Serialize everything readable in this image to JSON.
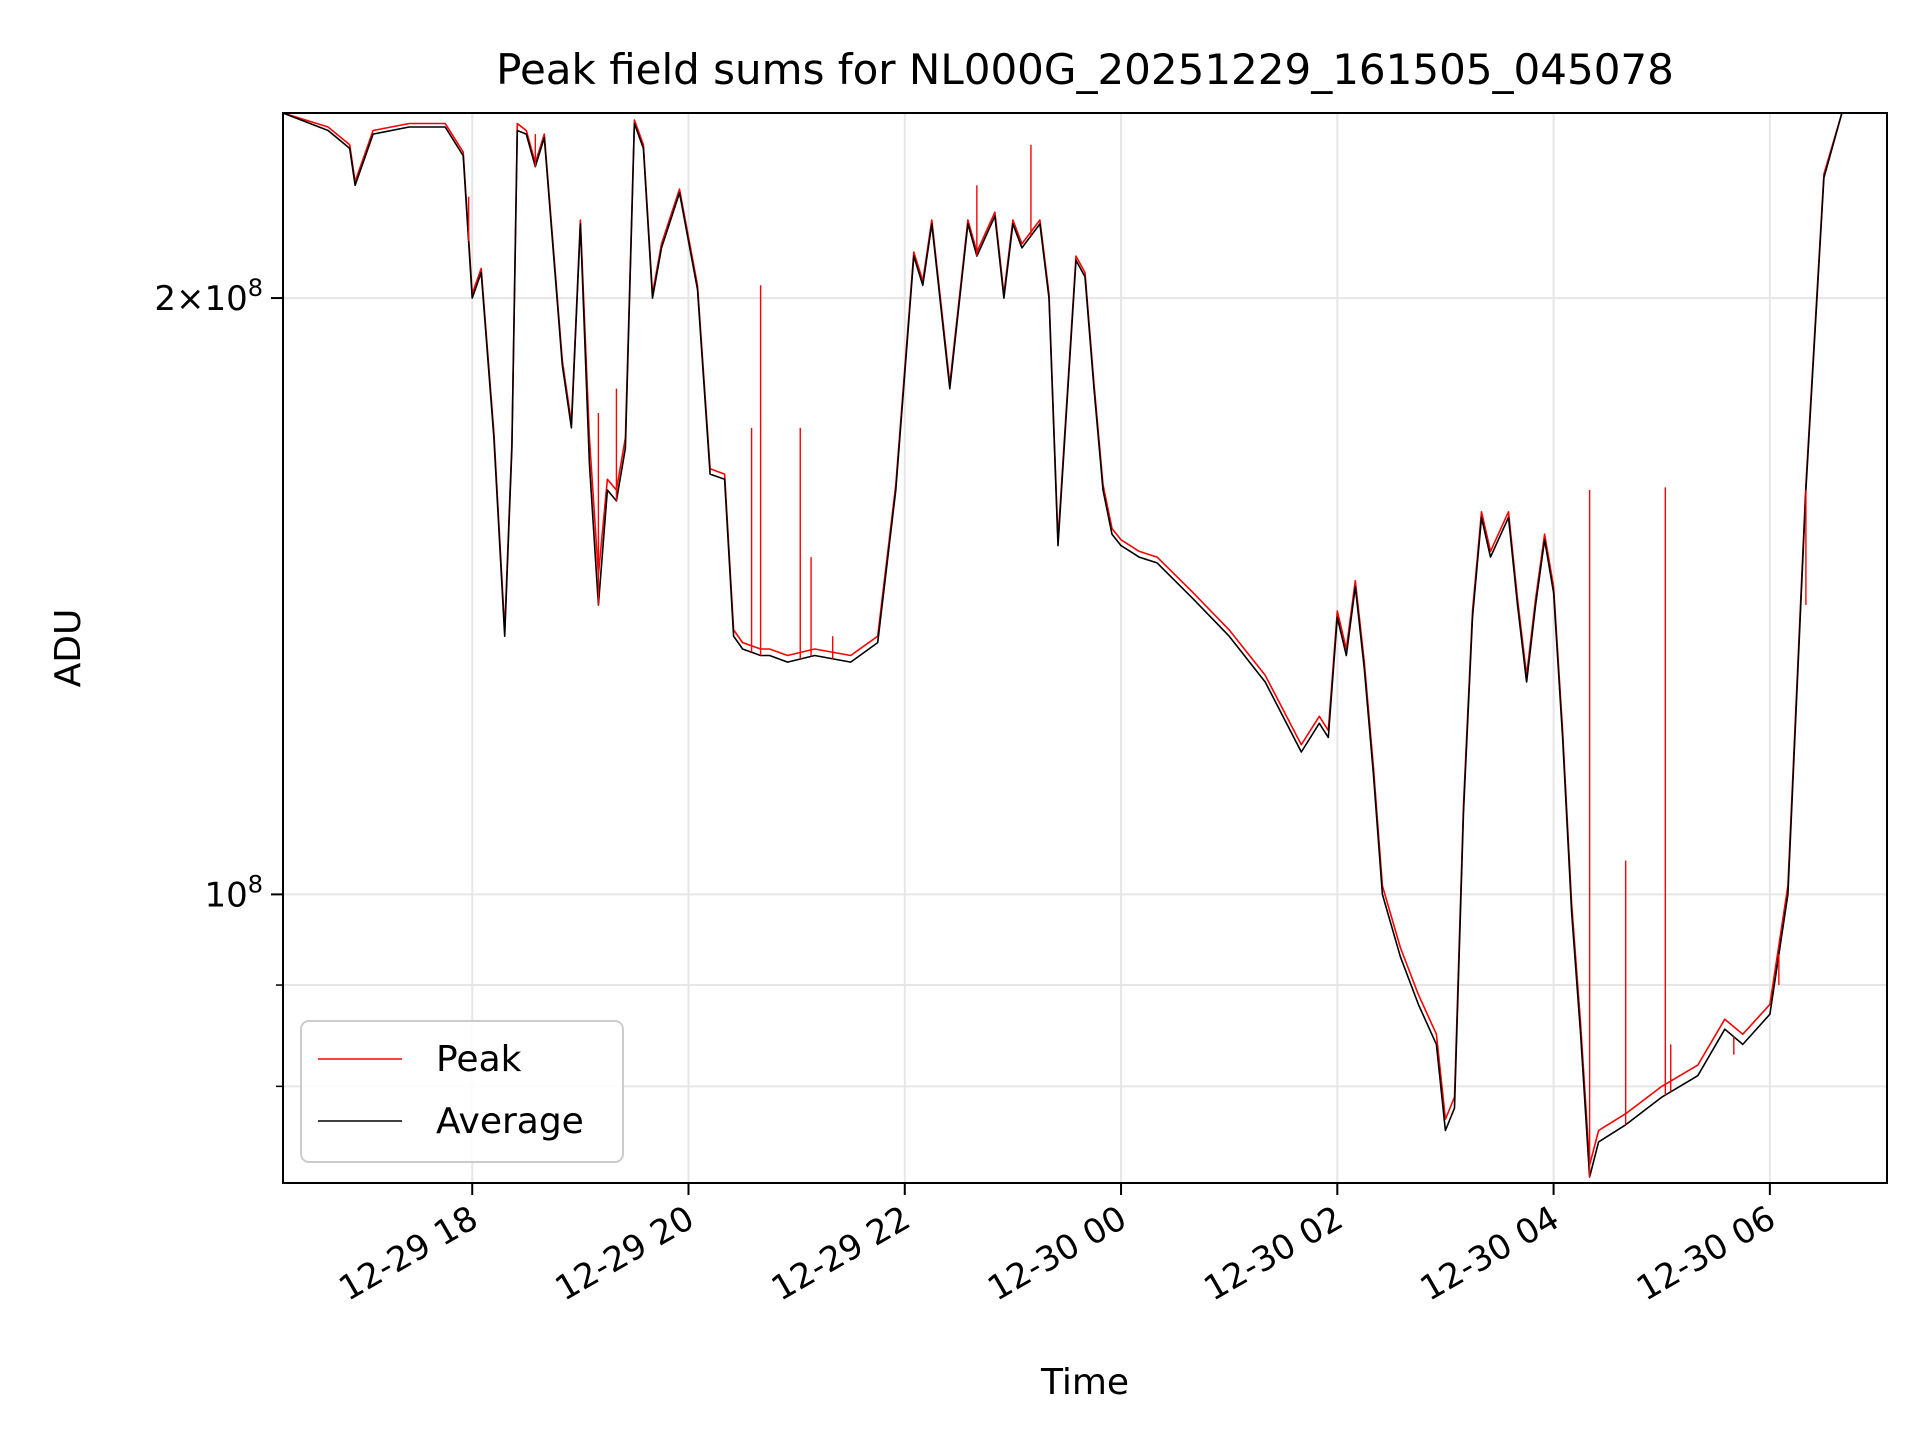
{
  "chart_data": {
    "type": "line",
    "title": "Peak field sums for NL000G_20251229_161505_045078",
    "xlabel": "Time",
    "ylabel": "ADU",
    "yscale": "log",
    "grid": true,
    "legend_position": "lower-left",
    "x_tick_labels": [
      "12-29 18",
      "12-29 20",
      "12-29 22",
      "12-30 00",
      "12-30 02",
      "12-30 04",
      "12-30 06"
    ],
    "y_tick_labels": [
      {
        "value": 200000000,
        "mantissa": "2",
        "exponent": "8"
      },
      {
        "value": 100000000,
        "mantissa": "",
        "exponent": "8"
      }
    ],
    "xlim": [
      "2025-12-29 16:15",
      "2025-12-30 07:05"
    ],
    "ylim": [
      71500000,
      248000000
    ],
    "colors": {
      "Peak": "#ff0000",
      "Average": "#000000"
    },
    "series": [
      {
        "name": "Average",
        "x": [
          "2025-12-29 16:15",
          "2025-12-29 16:40",
          "2025-12-29 16:52",
          "2025-12-29 16:55",
          "2025-12-29 17:05",
          "2025-12-29 17:25",
          "2025-12-29 17:45",
          "2025-12-29 17:55",
          "2025-12-29 18:00",
          "2025-12-29 18:05",
          "2025-12-29 18:12",
          "2025-12-29 18:18",
          "2025-12-29 18:22",
          "2025-12-29 18:25",
          "2025-12-29 18:30",
          "2025-12-29 18:35",
          "2025-12-29 18:40",
          "2025-12-29 18:50",
          "2025-12-29 18:55",
          "2025-12-29 19:00",
          "2025-12-29 19:05",
          "2025-12-29 19:10",
          "2025-12-29 19:15",
          "2025-12-29 19:20",
          "2025-12-29 19:25",
          "2025-12-29 19:30",
          "2025-12-29 19:35",
          "2025-12-29 19:40",
          "2025-12-29 19:45",
          "2025-12-29 19:55",
          "2025-12-29 20:05",
          "2025-12-29 20:12",
          "2025-12-29 20:20",
          "2025-12-29 20:25",
          "2025-12-29 20:30",
          "2025-12-29 20:40",
          "2025-12-29 20:45",
          "2025-12-29 20:55",
          "2025-12-29 21:10",
          "2025-12-29 21:30",
          "2025-12-29 21:45",
          "2025-12-29 21:55",
          "2025-12-29 22:05",
          "2025-12-29 22:10",
          "2025-12-29 22:15",
          "2025-12-29 22:25",
          "2025-12-29 22:35",
          "2025-12-29 22:40",
          "2025-12-29 22:50",
          "2025-12-29 22:55",
          "2025-12-29 23:00",
          "2025-12-29 23:05",
          "2025-12-29 23:15",
          "2025-12-29 23:20",
          "2025-12-29 23:25",
          "2025-12-29 23:35",
          "2025-12-29 23:40",
          "2025-12-29 23:45",
          "2025-12-29 23:50",
          "2025-12-29 23:55",
          "2025-12-30 00:00",
          "2025-12-30 00:05",
          "2025-12-30 00:10",
          "2025-12-30 00:20",
          "2025-12-30 00:40",
          "2025-12-30 01:00",
          "2025-12-30 01:20",
          "2025-12-30 01:40",
          "2025-12-30 01:50",
          "2025-12-30 01:55",
          "2025-12-30 02:00",
          "2025-12-30 02:05",
          "2025-12-30 02:10",
          "2025-12-30 02:15",
          "2025-12-30 02:20",
          "2025-12-30 02:25",
          "2025-12-30 02:35",
          "2025-12-30 02:45",
          "2025-12-30 02:55",
          "2025-12-30 03:00",
          "2025-12-30 03:05",
          "2025-12-30 03:10",
          "2025-12-30 03:15",
          "2025-12-30 03:20",
          "2025-12-30 03:25",
          "2025-12-30 03:35",
          "2025-12-30 03:40",
          "2025-12-30 03:45",
          "2025-12-30 03:50",
          "2025-12-30 03:55",
          "2025-12-30 04:00",
          "2025-12-30 04:05",
          "2025-12-30 04:10",
          "2025-12-30 04:15",
          "2025-12-30 04:20",
          "2025-12-30 04:25",
          "2025-12-30 04:30",
          "2025-12-30 04:40",
          "2025-12-30 05:00",
          "2025-12-30 05:20",
          "2025-12-30 05:35",
          "2025-12-30 05:45",
          "2025-12-30 06:00",
          "2025-12-30 06:10",
          "2025-12-30 06:20",
          "2025-12-30 06:30",
          "2025-12-30 06:40",
          "2025-12-30 06:48",
          "2025-12-30 06:55",
          "2025-12-30 07:05"
        ],
        "values": [
          248000000,
          243000000,
          238000000,
          228000000,
          242000000,
          244000000,
          244000000,
          236000000,
          200000000,
          206000000,
          170000000,
          135000000,
          168000000,
          243000000,
          242000000,
          233000000,
          241000000,
          185000000,
          172000000,
          218000000,
          165000000,
          140000000,
          160000000,
          158000000,
          168000000,
          245000000,
          238000000,
          200000000,
          212000000,
          226000000,
          202000000,
          163000000,
          162000000,
          135000000,
          133000000,
          132000000,
          132000000,
          131000000,
          132000000,
          131000000,
          134000000,
          160000000,
          210000000,
          203000000,
          218000000,
          180000000,
          218000000,
          210000000,
          220000000,
          200000000,
          218000000,
          212000000,
          218000000,
          200000000,
          150000000,
          209000000,
          205000000,
          180000000,
          160000000,
          152000000,
          150000000,
          149000000,
          148000000,
          147000000,
          141000000,
          135000000,
          128000000,
          118000000,
          122000000,
          120000000,
          138000000,
          132000000,
          143000000,
          130000000,
          115000000,
          100000000,
          93000000,
          88000000,
          84000000,
          76000000,
          78000000,
          110000000,
          138000000,
          155000000,
          148000000,
          155000000,
          140000000,
          128000000,
          140000000,
          151000000,
          142000000,
          120000000,
          98000000,
          85000000,
          72000000,
          75000000,
          75500000,
          76500000,
          79000000,
          81000000,
          85500000,
          84000000,
          87000000,
          100000000,
          160000000,
          230000000,
          248000000,
          248000000,
          248000000,
          248000000
        ]
      },
      {
        "name": "Peak",
        "x": [
          "2025-12-29 16:15",
          "2025-12-29 16:40",
          "2025-12-29 16:52",
          "2025-12-29 16:55",
          "2025-12-29 17:05",
          "2025-12-29 17:25",
          "2025-12-29 17:45",
          "2025-12-29 17:55",
          "2025-12-29 18:00",
          "2025-12-29 18:05",
          "2025-12-29 18:12",
          "2025-12-29 18:18",
          "2025-12-29 18:22",
          "2025-12-29 18:25",
          "2025-12-29 18:30",
          "2025-12-29 18:35",
          "2025-12-29 18:40",
          "2025-12-29 18:50",
          "2025-12-29 18:55",
          "2025-12-29 19:00",
          "2025-12-29 19:05",
          "2025-12-29 19:10",
          "2025-12-29 19:15",
          "2025-12-29 19:20",
          "2025-12-29 19:25",
          "2025-12-29 19:30",
          "2025-12-29 19:35",
          "2025-12-29 19:40",
          "2025-12-29 19:45",
          "2025-12-29 19:55",
          "2025-12-29 20:05",
          "2025-12-29 20:12",
          "2025-12-29 20:20",
          "2025-12-29 20:25",
          "2025-12-29 20:30",
          "2025-12-29 20:40",
          "2025-12-29 20:45",
          "2025-12-29 20:55",
          "2025-12-29 21:10",
          "2025-12-29 21:30",
          "2025-12-29 21:45",
          "2025-12-29 21:55",
          "2025-12-29 22:05",
          "2025-12-29 22:10",
          "2025-12-29 22:15",
          "2025-12-29 22:25",
          "2025-12-29 22:35",
          "2025-12-29 22:40",
          "2025-12-29 22:50",
          "2025-12-29 22:55",
          "2025-12-29 23:00",
          "2025-12-29 23:05",
          "2025-12-29 23:15",
          "2025-12-29 23:20",
          "2025-12-29 23:25",
          "2025-12-29 23:35",
          "2025-12-29 23:40",
          "2025-12-29 23:45",
          "2025-12-29 23:50",
          "2025-12-29 23:55",
          "2025-12-30 00:00",
          "2025-12-30 00:05",
          "2025-12-30 00:10",
          "2025-12-30 00:20",
          "2025-12-30 00:40",
          "2025-12-30 01:00",
          "2025-12-30 01:20",
          "2025-12-30 01:40",
          "2025-12-30 01:50",
          "2025-12-30 01:55",
          "2025-12-30 02:00",
          "2025-12-30 02:05",
          "2025-12-30 02:10",
          "2025-12-30 02:15",
          "2025-12-30 02:20",
          "2025-12-30 02:25",
          "2025-12-30 02:35",
          "2025-12-30 02:45",
          "2025-12-30 02:55",
          "2025-12-30 03:00",
          "2025-12-30 03:05",
          "2025-12-30 03:10",
          "2025-12-30 03:15",
          "2025-12-30 03:20",
          "2025-12-30 03:25",
          "2025-12-30 03:35",
          "2025-12-30 03:40",
          "2025-12-30 03:45",
          "2025-12-30 03:50",
          "2025-12-30 03:55",
          "2025-12-30 04:00",
          "2025-12-30 04:05",
          "2025-12-30 04:10",
          "2025-12-30 04:15",
          "2025-12-30 04:20",
          "2025-12-30 04:25",
          "2025-12-30 04:30",
          "2025-12-30 04:40",
          "2025-12-30 05:00",
          "2025-12-30 05:20",
          "2025-12-30 05:35",
          "2025-12-30 05:45",
          "2025-12-30 06:00",
          "2025-12-30 06:10",
          "2025-12-30 06:20",
          "2025-12-30 06:30",
          "2025-12-30 06:40",
          "2025-12-30 06:48",
          "2025-12-30 06:55",
          "2025-12-30 07:05"
        ],
        "values": [
          248000000,
          244000000,
          239000000,
          229000000,
          243000000,
          245000000,
          245000000,
          237000000,
          201000000,
          207000000,
          171000000,
          136000000,
          169000000,
          245000000,
          243000000,
          234000000,
          242000000,
          186000000,
          173000000,
          219000000,
          170000000,
          145000000,
          162000000,
          160000000,
          170000000,
          246000000,
          239000000,
          201000000,
          213000000,
          227000000,
          203000000,
          164000000,
          163000000,
          136000000,
          134000000,
          133000000,
          133000000,
          132000000,
          133000000,
          132000000,
          135000000,
          161000000,
          211000000,
          204000000,
          219000000,
          181000000,
          219000000,
          211000000,
          221000000,
          201000000,
          219000000,
          213000000,
          219000000,
          201000000,
          151000000,
          210000000,
          206000000,
          181000000,
          161000000,
          153000000,
          151000000,
          150000000,
          149000000,
          148000000,
          142000000,
          136000000,
          129000000,
          119000000,
          123000000,
          121000000,
          139000000,
          133000000,
          144000000,
          131000000,
          116000000,
          101000000,
          94000000,
          89000000,
          85000000,
          77000000,
          79000000,
          111000000,
          139000000,
          156000000,
          149000000,
          156000000,
          141000000,
          129000000,
          141000000,
          152000000,
          143000000,
          121000000,
          99000000,
          86000000,
          73000000,
          76000000,
          76500000,
          77500000,
          80000000,
          82000000,
          86500000,
          85000000,
          88000000,
          101000000,
          161000000,
          231000000,
          248000000,
          248000000,
          248000000,
          248000000
        ]
      }
    ],
    "peak_spikes": [
      {
        "x": "2025-12-29 17:58",
        "value": 225000000
      },
      {
        "x": "2025-12-29 18:35",
        "value": 242000000
      },
      {
        "x": "2025-12-29 19:10",
        "value": 175000000
      },
      {
        "x": "2025-12-29 19:20",
        "value": 180000000
      },
      {
        "x": "2025-12-29 20:35",
        "value": 172000000
      },
      {
        "x": "2025-12-29 20:40",
        "value": 203000000
      },
      {
        "x": "2025-12-29 21:02",
        "value": 172000000
      },
      {
        "x": "2025-12-29 21:08",
        "value": 148000000
      },
      {
        "x": "2025-12-29 21:20",
        "value": 135000000
      },
      {
        "x": "2025-12-29 22:40",
        "value": 228000000
      },
      {
        "x": "2025-12-29 23:10",
        "value": 239000000
      },
      {
        "x": "2025-12-30 04:20",
        "value": 160000000
      },
      {
        "x": "2025-12-30 04:40",
        "value": 104000000
      },
      {
        "x": "2025-12-30 05:02",
        "value": 160500000
      },
      {
        "x": "2025-12-30 05:05",
        "value": 84000000
      },
      {
        "x": "2025-12-30 05:40",
        "value": 83000000
      },
      {
        "x": "2025-12-30 06:05",
        "value": 90000000
      },
      {
        "x": "2025-12-30 06:20",
        "value": 140000000
      }
    ],
    "legend": [
      "Peak",
      "Average"
    ]
  }
}
